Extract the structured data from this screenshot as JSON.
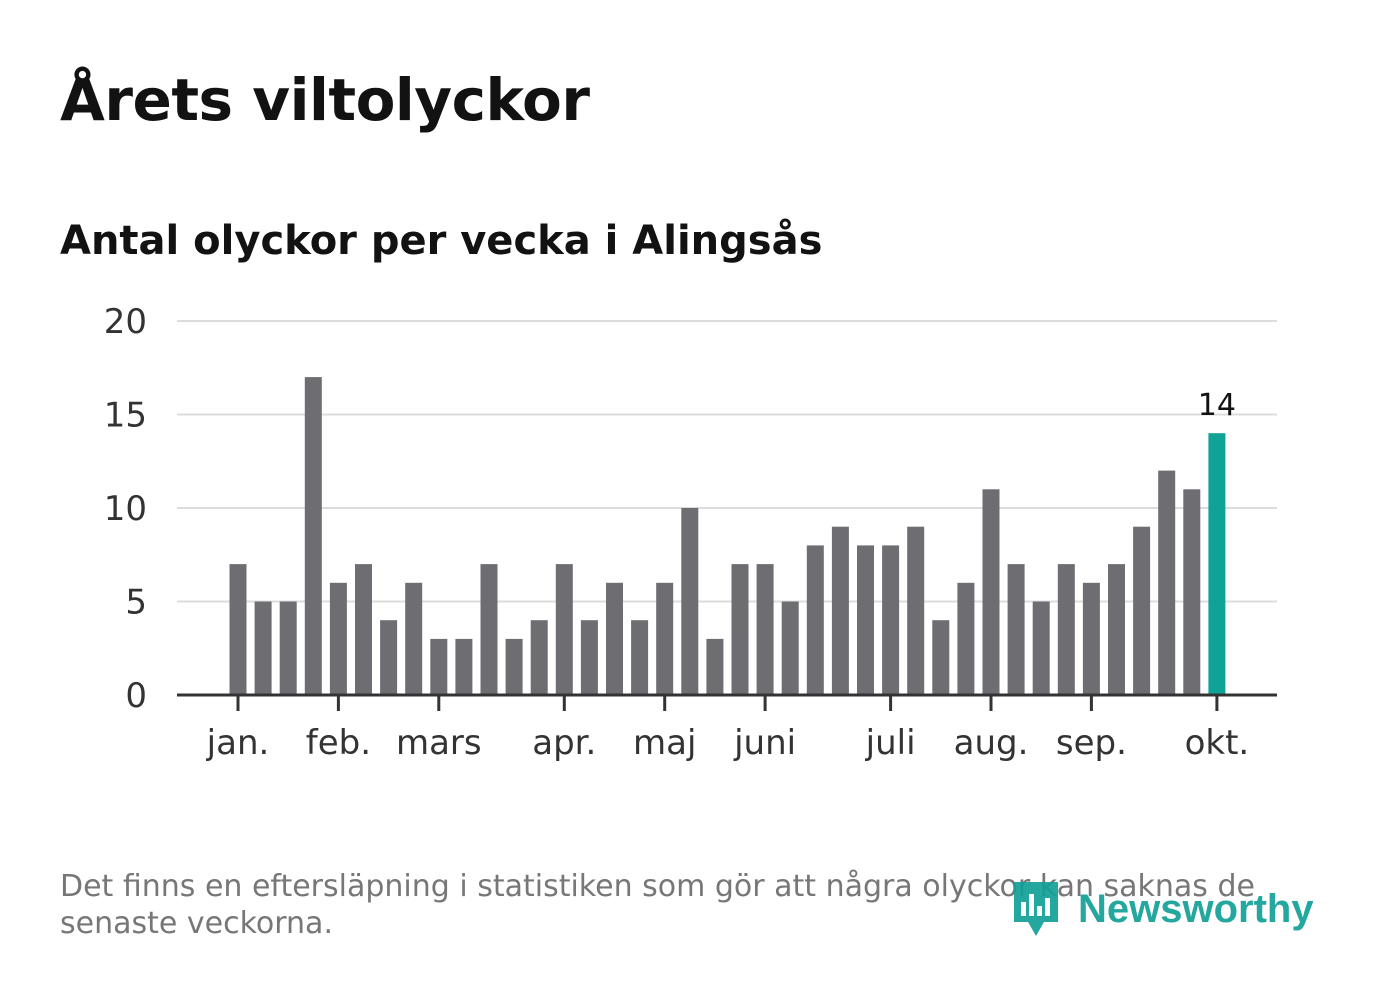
{
  "title": "Årets viltolyckor",
  "subtitle": "Antal olyckor per vecka i Alingsås",
  "footnote": "Det finns en eftersläpning i statistiken som gör att några olyckor kan saknas de senaste veckorna.",
  "brand": {
    "name": "Newsworthy",
    "icon": "bar-chart-icon"
  },
  "colors": {
    "bar": "#6e6d72",
    "highlight": "#0fa296",
    "grid": "#dcdcdc",
    "axis": "#333333",
    "text": "#121212",
    "muted": "#777777",
    "brand": "#12a097"
  },
  "chart_data": {
    "type": "bar",
    "title": "Antal olyckor per vecka i Alingsås",
    "xlabel": "",
    "ylabel": "",
    "ylim": [
      0,
      20
    ],
    "yticks": [
      0,
      5,
      10,
      15,
      20
    ],
    "grid": true,
    "weeks": [
      1,
      2,
      3,
      4,
      5,
      6,
      7,
      8,
      9,
      10,
      11,
      12,
      13,
      14,
      15,
      16,
      17,
      18,
      19,
      20,
      21,
      22,
      23,
      24,
      25,
      26,
      27,
      28,
      29,
      30,
      31,
      32,
      33,
      34,
      35,
      36,
      37,
      38,
      39,
      40
    ],
    "values": [
      7,
      5,
      5,
      17,
      6,
      7,
      4,
      6,
      3,
      3,
      7,
      3,
      4,
      7,
      4,
      6,
      4,
      6,
      10,
      3,
      7,
      7,
      5,
      8,
      9,
      8,
      8,
      9,
      4,
      6,
      11,
      7,
      5,
      7,
      6,
      7,
      9,
      12,
      11,
      14
    ],
    "highlight_index": 39,
    "highlight_label": "14",
    "month_ticks": [
      {
        "label": "jan.",
        "week": 1
      },
      {
        "label": "feb.",
        "week": 5
      },
      {
        "label": "mars",
        "week": 9
      },
      {
        "label": "apr.",
        "week": 14
      },
      {
        "label": "maj",
        "week": 18
      },
      {
        "label": "juni",
        "week": 22
      },
      {
        "label": "juli",
        "week": 27
      },
      {
        "label": "aug.",
        "week": 31
      },
      {
        "label": "sep.",
        "week": 35
      },
      {
        "label": "okt.",
        "week": 40
      }
    ]
  }
}
